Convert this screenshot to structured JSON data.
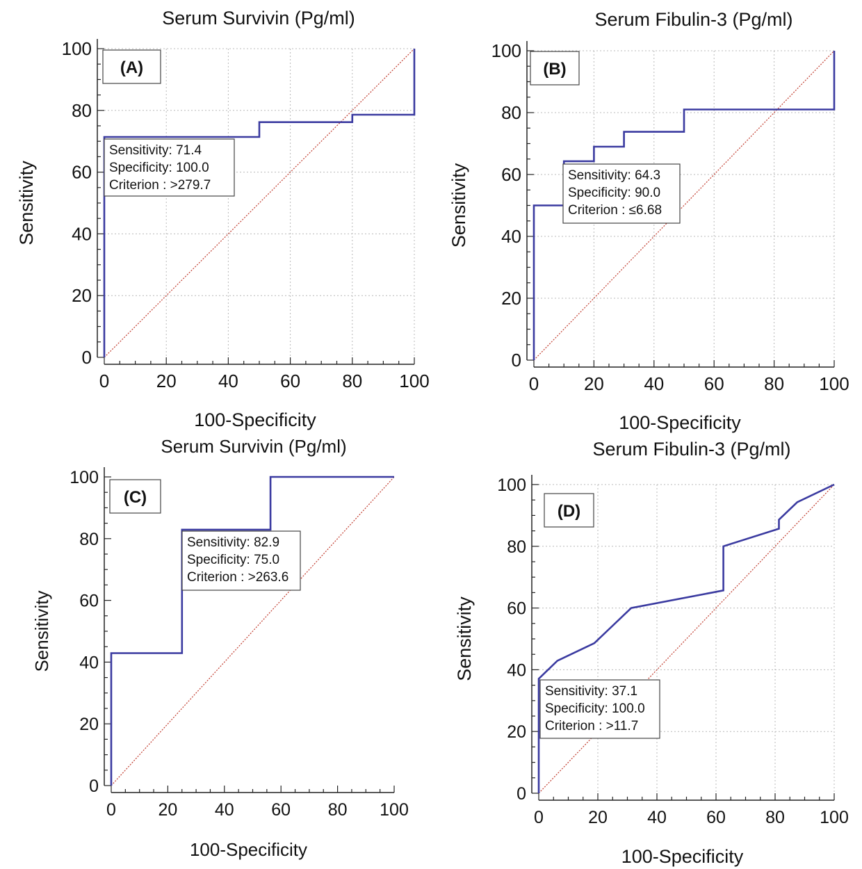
{
  "chart_data": [
    {
      "type": "line",
      "panel_label": "(A)",
      "title": "Serum Survivin (Pg/ml)",
      "xlabel": "100-Specificity",
      "ylabel": "Sensitivity",
      "xlim": [
        0,
        100
      ],
      "ylim": [
        0,
        100
      ],
      "xticks": [
        0,
        20,
        40,
        60,
        80,
        100
      ],
      "yticks": [
        0,
        20,
        40,
        60,
        80,
        100
      ],
      "grid": true,
      "reference_line": true,
      "step": true,
      "x": [
        0,
        0,
        50,
        50,
        80,
        80,
        100,
        100
      ],
      "y": [
        0,
        71.4,
        71.4,
        76.2,
        76.2,
        78.6,
        78.6,
        100
      ],
      "annotation": [
        "Sensitivity: 71.4",
        "Specificity: 100.0",
        "Criterion : >279.7"
      ]
    },
    {
      "type": "line",
      "panel_label": "(B)",
      "title": "Serum Fibulin-3 (Pg/ml)",
      "xlabel": "100-Specificity",
      "ylabel": "Sensitivity",
      "xlim": [
        0,
        100
      ],
      "ylim": [
        0,
        100
      ],
      "xticks": [
        0,
        20,
        40,
        60,
        80,
        100
      ],
      "yticks": [
        0,
        20,
        40,
        60,
        80,
        100
      ],
      "grid": true,
      "reference_line": true,
      "step": true,
      "x": [
        0,
        0,
        10,
        10,
        20,
        20,
        30,
        30,
        50,
        50,
        100,
        100
      ],
      "y": [
        0,
        50,
        50,
        64.3,
        64.3,
        69,
        69,
        73.8,
        73.8,
        81,
        81,
        100
      ],
      "annotation": [
        "Sensitivity: 64.3",
        "Specificity: 90.0",
        "Criterion : ≤6.68"
      ]
    },
    {
      "type": "line",
      "panel_label": "(C)",
      "title": "Serum Survivin (Pg/ml)",
      "xlabel": "100-Specificity",
      "ylabel": "Sensitivity",
      "xlim": [
        0,
        100
      ],
      "ylim": [
        0,
        100
      ],
      "xticks": [
        0,
        20,
        40,
        60,
        80,
        100
      ],
      "yticks": [
        0,
        20,
        40,
        60,
        80,
        100
      ],
      "grid": false,
      "reference_line": true,
      "step": true,
      "x": [
        0,
        0,
        25,
        25,
        56.3,
        56.3,
        100
      ],
      "y": [
        0,
        42.9,
        42.9,
        82.9,
        82.9,
        100,
        100
      ],
      "annotation": [
        "Sensitivity: 82.9",
        "Specificity: 75.0",
        "Criterion : >263.6"
      ]
    },
    {
      "type": "line",
      "panel_label": "(D)",
      "title": "Serum Fibulin-3 (Pg/ml)",
      "xlabel": "100-Specificity",
      "ylabel": "Sensitivity",
      "xlim": [
        0,
        100
      ],
      "ylim": [
        0,
        100
      ],
      "xticks": [
        0,
        20,
        40,
        60,
        80,
        100
      ],
      "yticks": [
        0,
        20,
        40,
        60,
        80,
        100
      ],
      "grid": true,
      "reference_line": true,
      "step": false,
      "x": [
        0,
        0,
        6.3,
        18.8,
        31.3,
        62.5,
        62.5,
        81.3,
        81.3,
        87.5,
        100
      ],
      "y": [
        0,
        37.1,
        42.9,
        48.6,
        60,
        65.7,
        80,
        85.7,
        88.6,
        94.3,
        100
      ],
      "annotation": [
        "Sensitivity: 37.1",
        "Specificity: 100.0",
        "Criterion : >11.7"
      ]
    }
  ]
}
